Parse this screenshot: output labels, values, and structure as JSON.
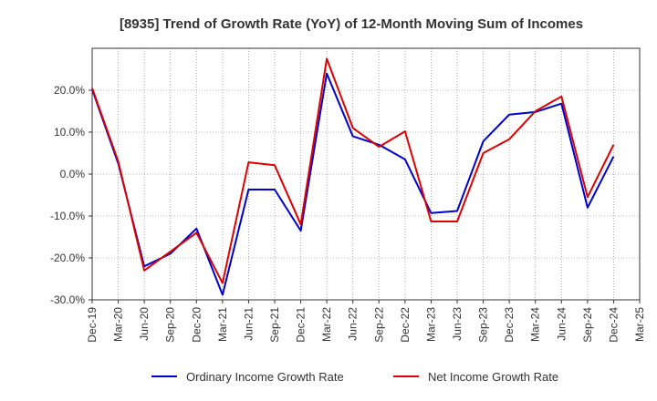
{
  "chart_data": {
    "type": "line",
    "title": "[8935]  Trend of Growth Rate (YoY) of 12-Month Moving Sum of Incomes",
    "x": [
      "Dec-19",
      "Mar-20",
      "Jun-20",
      "Sep-20",
      "Dec-20",
      "Mar-21",
      "Jun-21",
      "Sep-21",
      "Dec-21",
      "Mar-22",
      "Jun-22",
      "Sep-22",
      "Dec-22",
      "Mar-23",
      "Jun-23",
      "Sep-23",
      "Dec-23",
      "Mar-24",
      "Jun-24",
      "Sep-24",
      "Dec-24",
      "Mar-25"
    ],
    "yticks": [
      -30,
      -20,
      -10,
      0,
      10,
      20
    ],
    "ytick_labels": [
      "-30.0%",
      "-20.0%",
      "-10.0%",
      "0.0%",
      "10.0%",
      "20.0%"
    ],
    "ylim": [
      -30,
      30
    ],
    "grid": true,
    "legend_position": "bottom",
    "series": [
      {
        "name": "Ordinary Income Growth Rate",
        "color": "#0000cc",
        "values": [
          20.2,
          2.5,
          -22.0,
          -19.0,
          -13.0,
          -28.8,
          -3.7,
          -3.7,
          -13.5,
          24.0,
          9.0,
          7.0,
          3.5,
          -9.3,
          -8.8,
          7.8,
          14.2,
          14.8,
          16.8,
          -8.0,
          4.2,
          null
        ]
      },
      {
        "name": "Net Income Growth Rate",
        "color": "#dd0000",
        "values": [
          20.5,
          3.0,
          -23.0,
          -18.5,
          -14.0,
          -26.0,
          2.8,
          2.1,
          -12.0,
          27.5,
          11.0,
          6.5,
          10.2,
          -11.3,
          -11.3,
          5.0,
          8.3,
          15.0,
          18.5,
          -5.5,
          7.0,
          null
        ]
      }
    ]
  }
}
